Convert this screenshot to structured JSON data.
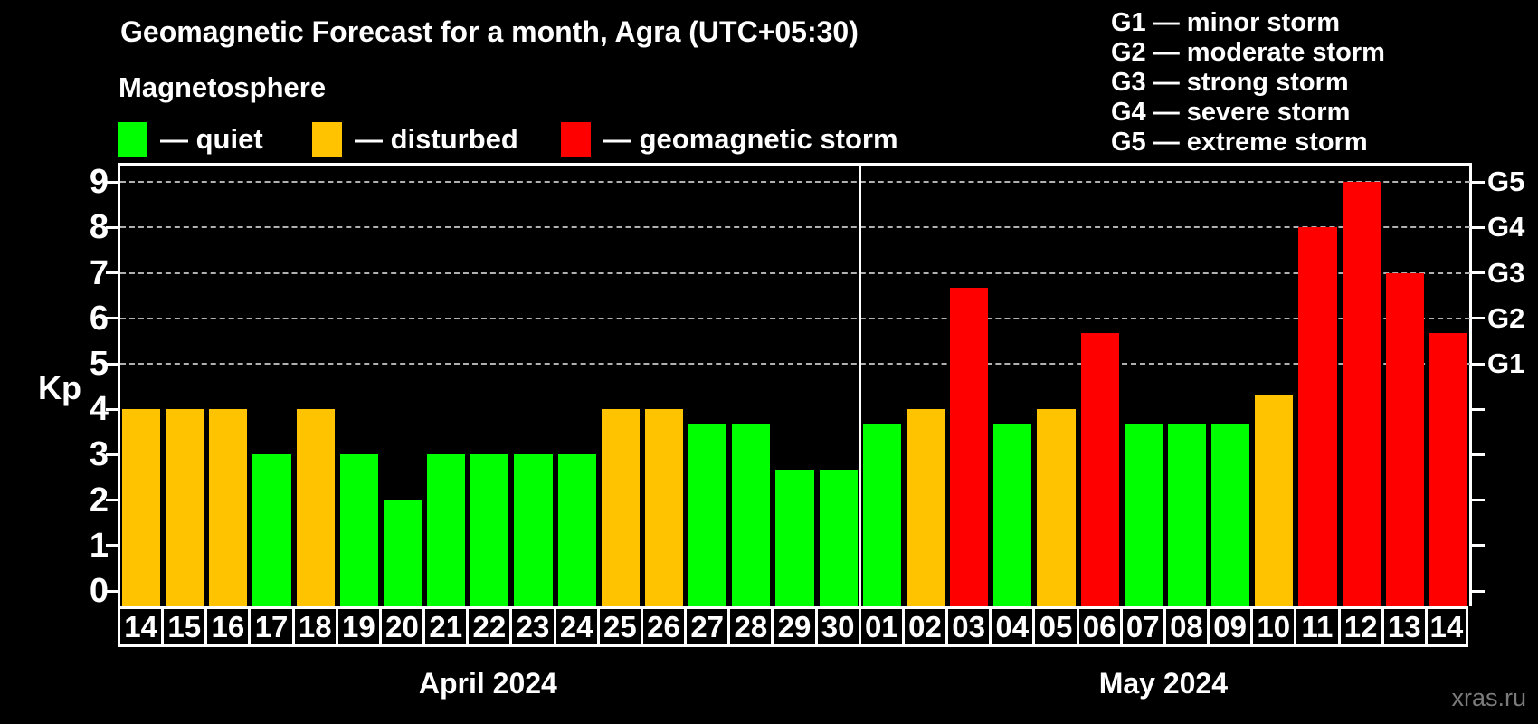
{
  "title": "Geomagnetic Forecast for a month, Agra (UTC+05:30)",
  "subtitle": "Magnetosphere",
  "legend": {
    "items": [
      {
        "label": "— quiet",
        "status": "quiet",
        "color": "#00ff00"
      },
      {
        "label": "— disturbed",
        "status": "disturbed",
        "color": "#ffc300"
      },
      {
        "label": "— geomagnetic storm",
        "status": "storm",
        "color": "#ff0000"
      }
    ]
  },
  "g_scale_legend": {
    "items": [
      "G1 — minor storm",
      "G2 — moderate storm",
      "G3 — strong storm",
      "G4 — severe storm",
      "G5 — extreme storm"
    ]
  },
  "y_axis": {
    "label": "Kp",
    "ticks": [
      0,
      1,
      2,
      3,
      4,
      5,
      6,
      7,
      8,
      9
    ]
  },
  "right_axis": {
    "labels": [
      {
        "text": "G1",
        "kp": 5
      },
      {
        "text": "G2",
        "kp": 6
      },
      {
        "text": "G3",
        "kp": 7
      },
      {
        "text": "G4",
        "kp": 8
      },
      {
        "text": "G5",
        "kp": 9
      }
    ]
  },
  "watermark": "xras.ru",
  "chart_data": {
    "type": "bar",
    "title": "Geomagnetic Forecast for a month, Agra (UTC+05:30)",
    "xlabel": "",
    "ylabel": "Kp",
    "ylim": [
      0,
      9
    ],
    "grid": "dashed horizontal at Kp 5-9 only",
    "legend_position": "top",
    "gridlines_kp": [
      5,
      6,
      7,
      8,
      9
    ],
    "status_colors": {
      "quiet": "#00ff00",
      "disturbed": "#ffc300",
      "storm": "#ff0000"
    },
    "months": [
      {
        "label": "April 2024",
        "bars": [
          {
            "day": "14",
            "kp": 4.0,
            "status": "disturbed"
          },
          {
            "day": "15",
            "kp": 4.0,
            "status": "disturbed"
          },
          {
            "day": "16",
            "kp": 4.0,
            "status": "disturbed"
          },
          {
            "day": "17",
            "kp": 3.0,
            "status": "quiet"
          },
          {
            "day": "18",
            "kp": 4.0,
            "status": "disturbed"
          },
          {
            "day": "19",
            "kp": 3.0,
            "status": "quiet"
          },
          {
            "day": "20",
            "kp": 2.0,
            "status": "quiet"
          },
          {
            "day": "21",
            "kp": 3.0,
            "status": "quiet"
          },
          {
            "day": "22",
            "kp": 3.0,
            "status": "quiet"
          },
          {
            "day": "23",
            "kp": 3.0,
            "status": "quiet"
          },
          {
            "day": "24",
            "kp": 3.0,
            "status": "quiet"
          },
          {
            "day": "25",
            "kp": 4.0,
            "status": "disturbed"
          },
          {
            "day": "26",
            "kp": 4.0,
            "status": "disturbed"
          },
          {
            "day": "27",
            "kp": 3.67,
            "status": "quiet"
          },
          {
            "day": "28",
            "kp": 3.67,
            "status": "quiet"
          },
          {
            "day": "29",
            "kp": 2.67,
            "status": "quiet"
          },
          {
            "day": "30",
            "kp": 2.67,
            "status": "quiet"
          }
        ]
      },
      {
        "label": "May 2024",
        "bars": [
          {
            "day": "01",
            "kp": 3.67,
            "status": "quiet"
          },
          {
            "day": "02",
            "kp": 4.0,
            "status": "disturbed"
          },
          {
            "day": "03",
            "kp": 6.67,
            "status": "storm"
          },
          {
            "day": "04",
            "kp": 3.67,
            "status": "quiet"
          },
          {
            "day": "05",
            "kp": 4.0,
            "status": "disturbed"
          },
          {
            "day": "06",
            "kp": 5.67,
            "status": "storm"
          },
          {
            "day": "07",
            "kp": 3.67,
            "status": "quiet"
          },
          {
            "day": "08",
            "kp": 3.67,
            "status": "quiet"
          },
          {
            "day": "09",
            "kp": 3.67,
            "status": "quiet"
          },
          {
            "day": "10",
            "kp": 4.33,
            "status": "disturbed"
          },
          {
            "day": "11",
            "kp": 8.0,
            "status": "storm"
          },
          {
            "day": "12",
            "kp": 9.0,
            "status": "storm"
          },
          {
            "day": "13",
            "kp": 7.0,
            "status": "storm"
          },
          {
            "day": "14",
            "kp": 5.67,
            "status": "storm"
          }
        ]
      }
    ]
  }
}
